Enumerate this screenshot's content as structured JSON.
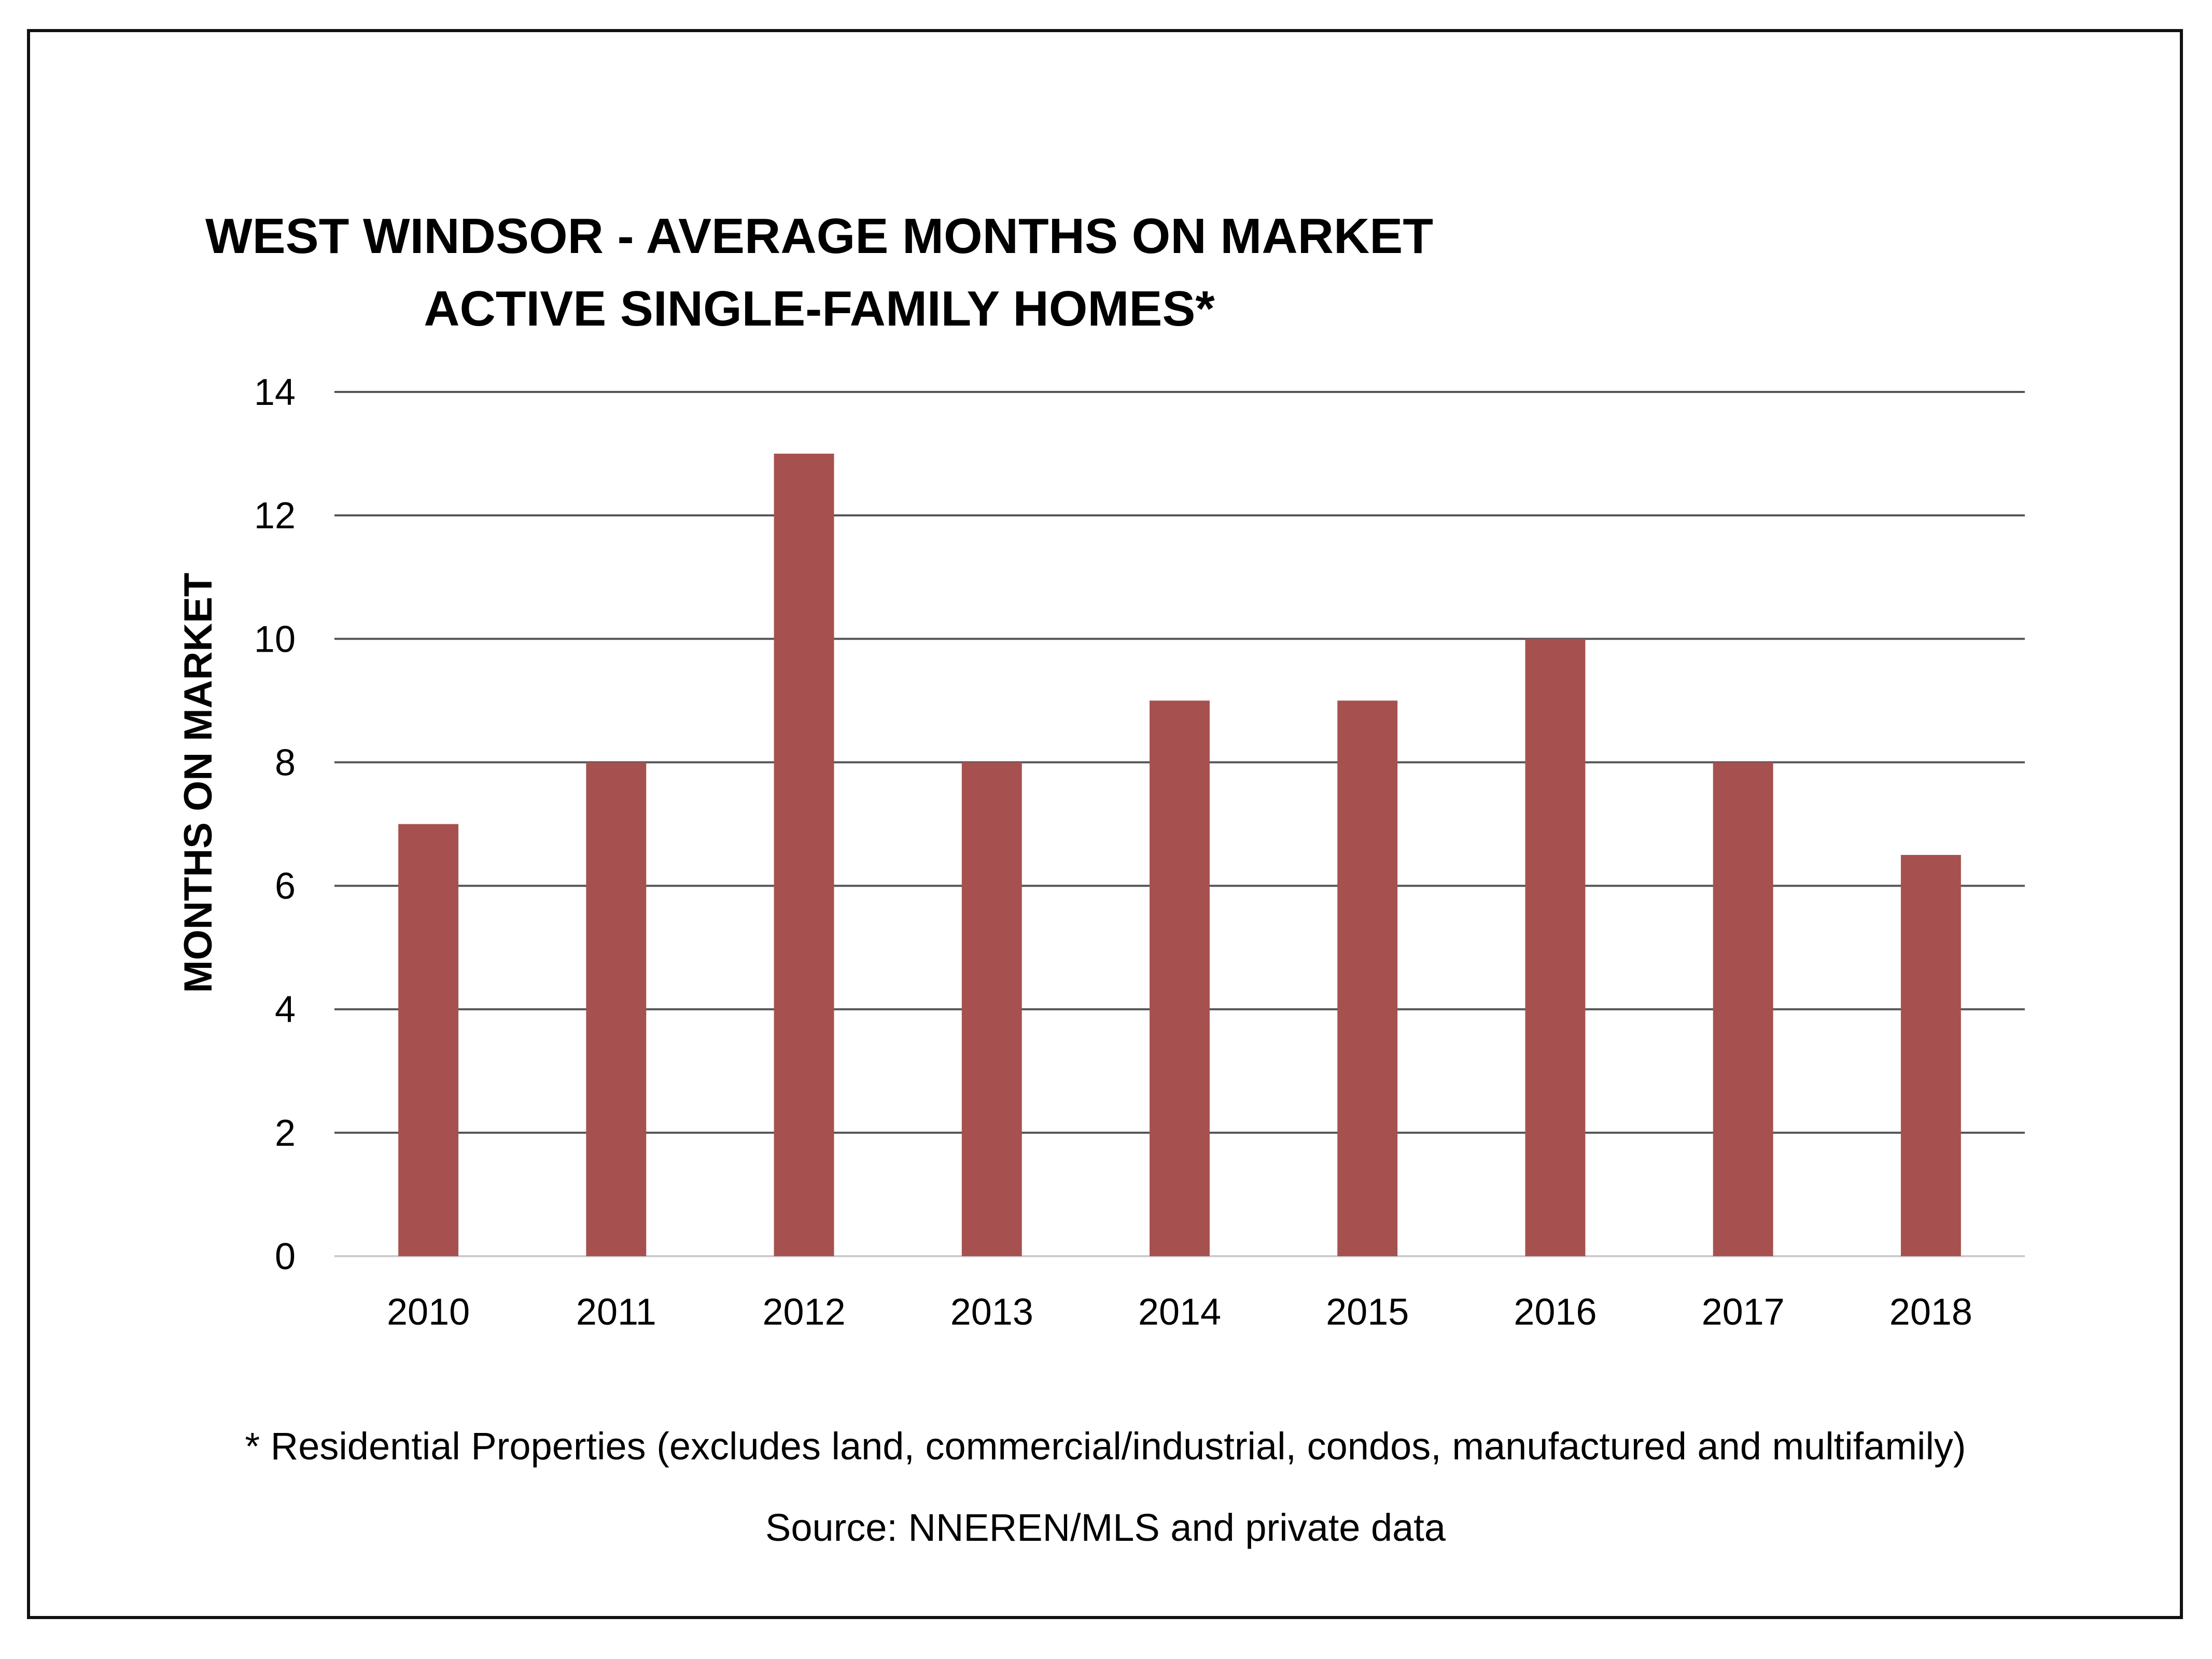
{
  "chart_data": {
    "type": "bar",
    "title": "WEST WINDSOR - AVERAGE MONTHS ON MARKET",
    "subtitle": "ACTIVE SINGLE-FAMILY HOMES*",
    "xlabel": "",
    "ylabel": "MONTHS ON MARKET",
    "categories": [
      "2010",
      "2011",
      "2012",
      "2013",
      "2014",
      "2015",
      "2016",
      "2017",
      "2018"
    ],
    "values": [
      7,
      8,
      13,
      8,
      9,
      9,
      10,
      8,
      6.5
    ],
    "ylim": [
      0,
      14
    ],
    "yticks": [
      "0",
      "2",
      "4",
      "6",
      "8",
      "10",
      "12",
      "14"
    ],
    "grid": true,
    "bar_color": "#a6514f",
    "grid_color": "#555555"
  },
  "footnote": "* Residential Properties (excludes land, commercial/industrial, condos, manufactured and multifamily)",
  "source": "Source: NNEREN/MLS and private data"
}
